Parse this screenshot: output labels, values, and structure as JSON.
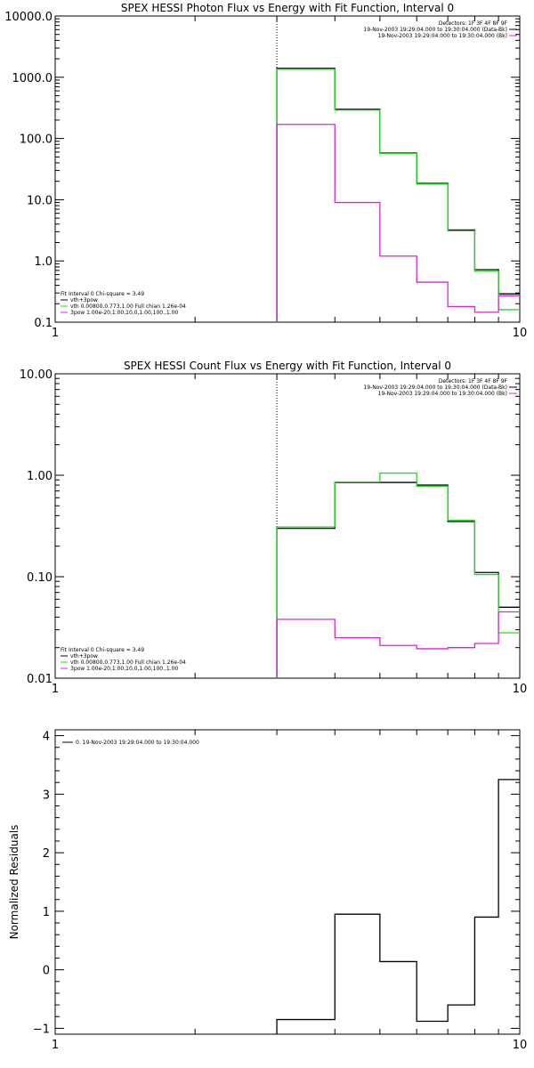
{
  "colors": {
    "total": "#000000",
    "thermal": "#22dd22",
    "pileup": "#dd22dd",
    "background": "#ffffff"
  },
  "chart_data": [
    {
      "type": "line",
      "title": "SPEX HESSI Photon Flux vs Energy with Fit Function, Interval 0",
      "xlabel": "",
      "ylabel": "",
      "xscale": "log",
      "yscale": "log",
      "xlim": [
        1,
        10
      ],
      "ylim": [
        0.1,
        10000
      ],
      "xticks": [
        "1",
        "10"
      ],
      "yticks": [
        "0.1",
        "1.0",
        "10.0",
        "100.0",
        "1000.0",
        "10000.0"
      ],
      "fit_marker_x": 3.0,
      "header_lines": [
        "Detectors: 1F 3F 4F 8F 9F",
        "19-Nov-2003 19:29:04.000 to 19:30:04.000 (Data-Bk)",
        "19-Nov-2003 19:29:04.000 to 19:30:04.000 (Bk)"
      ],
      "fit_lines": [
        "Fit Interval 0   Chi-square = 3.49",
        "vth+3pow",
        "vth 0.00800,0.773,1.00  Full chian 1.26e-04",
        "3pow 1.00e-20,1.00,10.0,1.00,100.,1.00"
      ],
      "bin_edges": [
        3.0,
        4.0,
        5.0,
        6.0,
        7.0,
        8.0,
        9.0,
        10.0
      ],
      "series": [
        {
          "key": "total",
          "values": [
            1400,
            300,
            58,
            18.5,
            3.2,
            0.72,
            0.29
          ]
        },
        {
          "key": "thermal",
          "values": [
            1350,
            290,
            57,
            18,
            3.1,
            0.68,
            0.16
          ]
        },
        {
          "key": "pileup",
          "values": [
            170,
            9,
            1.2,
            0.45,
            0.18,
            0.145,
            0.27
          ]
        }
      ]
    },
    {
      "type": "line",
      "title": "SPEX HESSI Count Flux vs Energy with Fit Function, Interval 0",
      "xlabel": "",
      "ylabel": "",
      "xscale": "log",
      "yscale": "log",
      "xlim": [
        1,
        10
      ],
      "ylim": [
        0.01,
        10
      ],
      "xticks": [
        "1",
        "10"
      ],
      "yticks": [
        "0.01",
        "0.10",
        "1.00",
        "10.00"
      ],
      "fit_marker_x": 3.0,
      "header_lines": [
        "Detectors: 1F 3F 4F 8F 9F",
        "19-Nov-2003 19:29:04.000 to 19:30:04.000 (Data-Bk)",
        "19-Nov-2003 19:29:04.000 to 19:30:04.000 (Bk)"
      ],
      "fit_lines": [
        "Fit Interval 0   Chi-square = 3.49",
        "vth+3pow",
        "vth 0.00800,0.773,1.00  Full chian 1.26e-04",
        "3pow 1.00e-20,1.00,10.0,1.00,100.,1.00"
      ],
      "bin_edges": [
        3.0,
        4.0,
        5.0,
        6.0,
        7.0,
        8.0,
        9.0,
        10.0
      ],
      "series": [
        {
          "key": "total",
          "values": [
            0.3,
            0.85,
            0.85,
            0.8,
            0.35,
            0.11,
            0.05
          ]
        },
        {
          "key": "thermal",
          "values": [
            0.31,
            0.86,
            1.05,
            0.78,
            0.36,
            0.105,
            0.028
          ]
        },
        {
          "key": "pileup",
          "values": [
            0.038,
            0.025,
            0.021,
            0.0195,
            0.02,
            0.022,
            0.045
          ]
        }
      ]
    },
    {
      "type": "line",
      "title": "",
      "xlabel": "",
      "ylabel": "Normalized Residuals",
      "xscale": "log",
      "yscale": "linear",
      "xlim": [
        1,
        10
      ],
      "ylim": [
        -1.1,
        4.1
      ],
      "xticks": [
        "1",
        "10"
      ],
      "yticks": [
        "-1",
        "0",
        "1",
        "2",
        "3",
        "4"
      ],
      "legend": "0. 19-Nov-2003 19:29:04.000 to 19:30:04.000",
      "bin_edges": [
        3.0,
        4.0,
        5.0,
        6.0,
        7.0,
        8.0,
        9.0,
        10.0
      ],
      "series": [
        {
          "key": "total",
          "values": [
            -0.85,
            0.95,
            0.14,
            -0.88,
            -0.6,
            0.9,
            3.25
          ]
        }
      ]
    }
  ]
}
